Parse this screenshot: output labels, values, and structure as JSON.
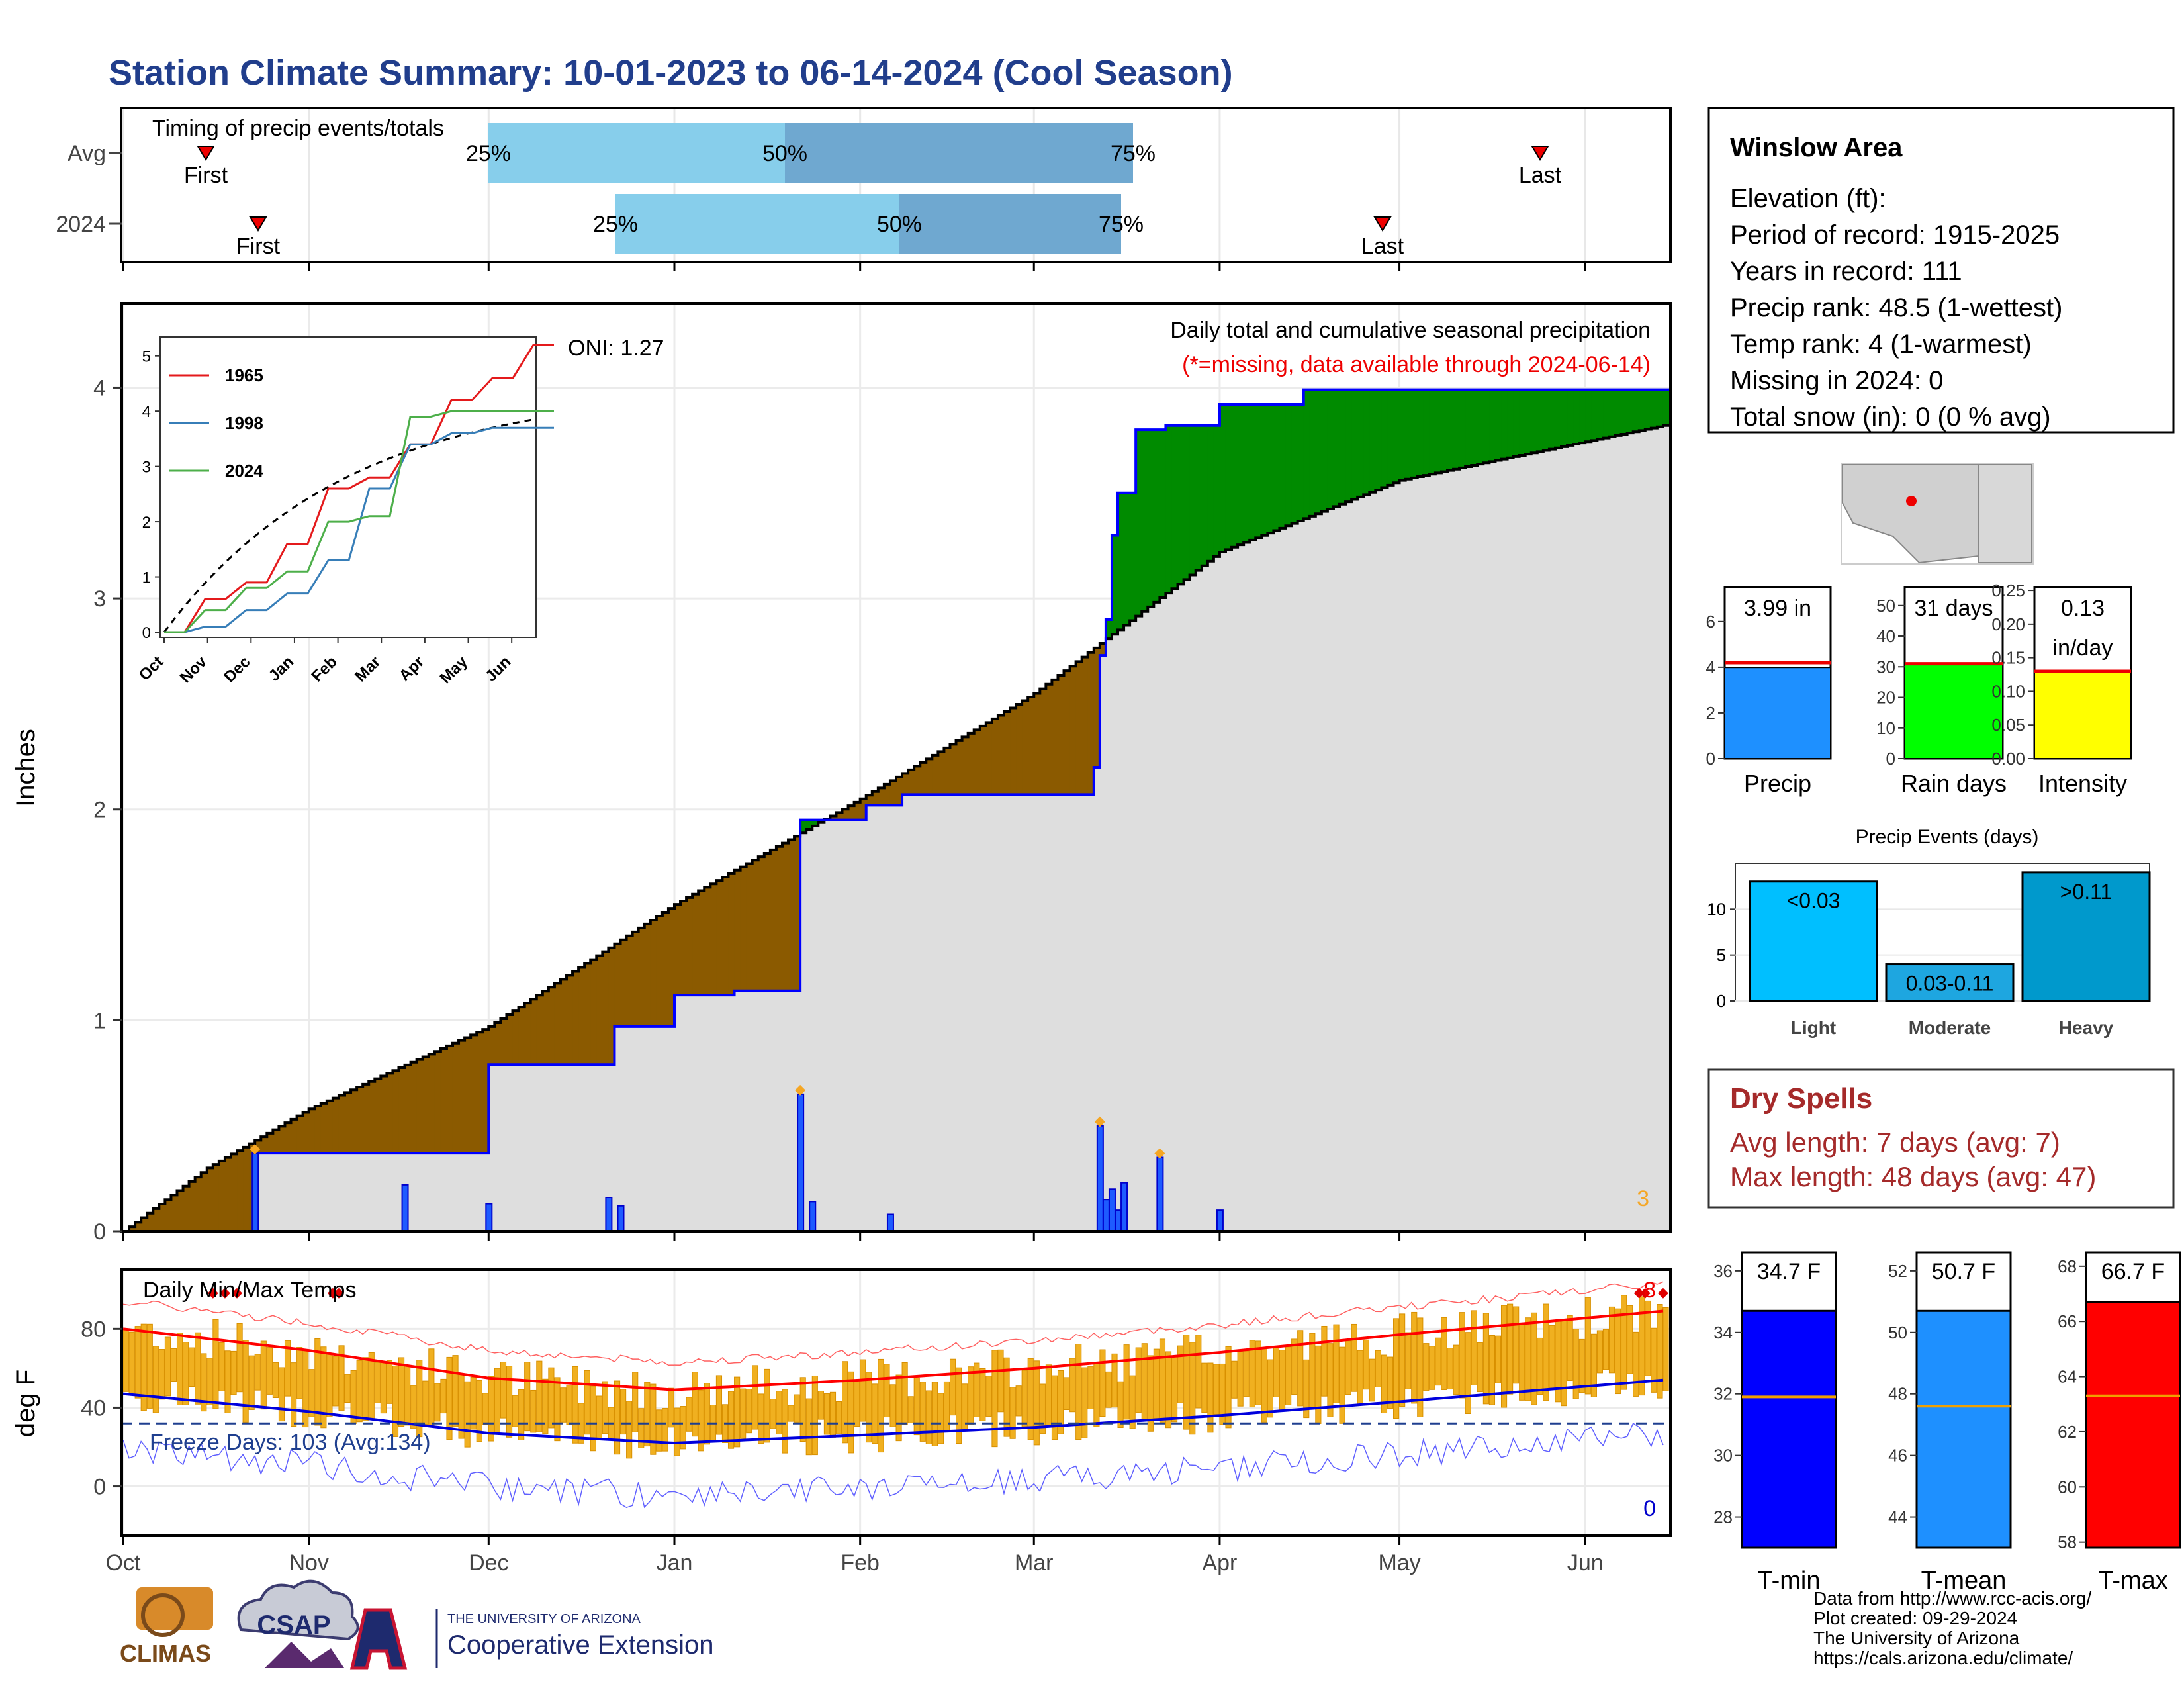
{
  "title": "Station Climate Summary: 10-01-2023 to 06-14-2024 (Cool Season)",
  "timing": {
    "label": "Timing of precip events/totals",
    "rows": [
      "Avg",
      "2024"
    ],
    "first_label": "First",
    "last_label": "Last",
    "pct_labels": [
      "25%",
      "50%",
      "75%"
    ]
  },
  "station": {
    "name": "Winslow Area",
    "lines": [
      "Elevation (ft):",
      "Period of record: 1915-2025",
      "Years in record: 111",
      "Precip rank: 48.5 (1-wettest)",
      "Temp rank: 4 (1-warmest)",
      "Missing in 2024: 0",
      "Total snow (in): 0 (0 % avg)"
    ]
  },
  "precip_panel": {
    "ylabel": "Inches",
    "oni": "ONI: 1.27",
    "note1": "Daily total and cumulative seasonal precipitation",
    "note2": "(*=missing, data available through 2024-06-14)",
    "corner_count": "3"
  },
  "inset": {
    "legend": [
      "1965",
      "1998",
      "2024"
    ],
    "colors": {
      "1965": "#e41a1c",
      "1998": "#377eb8",
      "2024": "#4daf4a"
    },
    "months": [
      "Oct",
      "Nov",
      "Dec",
      "Jan",
      "Feb",
      "Mar",
      "Apr",
      "May",
      "Jun"
    ],
    "yticks": [
      "0",
      "1",
      "2",
      "3",
      "4",
      "5"
    ]
  },
  "temp_panel": {
    "ylabel": "deg F",
    "label": "Daily Min/Max Temps",
    "freeze": "Freeze Days: 103 (Avg:134)",
    "hot_count": "8",
    "cold_count": "0",
    "yticks": [
      "0",
      "40",
      "80"
    ]
  },
  "months": [
    "Oct",
    "Nov",
    "Dec",
    "Jan",
    "Feb",
    "Mar",
    "Apr",
    "May",
    "Jun"
  ],
  "summary_bars": [
    {
      "label": "Precip",
      "value_text": "3.99 in",
      "color": "#1e90ff",
      "ticks": [
        "0",
        "2",
        "4",
        "6"
      ]
    },
    {
      "label": "Rain days",
      "value_text": "31 days",
      "color": "#00ff00",
      "ticks": [
        "0",
        "10",
        "20",
        "30",
        "40",
        "50"
      ]
    },
    {
      "label": "Intensity",
      "value_text": "0.13",
      "value_text2": "in/day",
      "color": "#ffff00",
      "ticks": [
        "0.00",
        "0.05",
        "0.10",
        "0.15",
        "0.20",
        "0.25"
      ]
    }
  ],
  "events": {
    "title": "Precip Events (days)",
    "categories": [
      "Light",
      "Moderate",
      "Heavy"
    ],
    "bar_labels": [
      "<0.03",
      "0.03-0.11",
      ">0.11"
    ],
    "ticks": [
      "0",
      "5",
      "10"
    ]
  },
  "dry_spells": {
    "title": "Dry Spells",
    "line1": "Avg length: 7 days (avg: 7)",
    "line2": "Max length: 48 days (avg: 47)"
  },
  "temp_bars": [
    {
      "label": "T-min",
      "value_text": "34.7 F",
      "color": "#0000ff",
      "ticks": [
        "28",
        "30",
        "32",
        "34",
        "36"
      ]
    },
    {
      "label": "T-mean",
      "value_text": "50.7 F",
      "color": "#1e90ff",
      "ticks": [
        "44",
        "46",
        "48",
        "50",
        "52"
      ]
    },
    {
      "label": "T-max",
      "value_text": "66.7 F",
      "color": "#ff0000",
      "ticks": [
        "58",
        "60",
        "62",
        "64",
        "66",
        "68"
      ]
    }
  ],
  "logos": {
    "climas": "CLIMAS",
    "csap": "CSAP",
    "ua_small": "THE UNIVERSITY OF ARIZONA",
    "ua_big": "Cooperative Extension"
  },
  "footer": [
    "Data from http://www.rcc-acis.org/",
    "Plot created: 09-29-2024",
    "The University of Arizona",
    "https://cals.arizona.edu/climate/"
  ],
  "chart_data": [
    {
      "type": "area",
      "title": "Daily total and cumulative seasonal precipitation",
      "ylabel": "Inches",
      "ylim": [
        0,
        4.4
      ],
      "x_range": [
        "2023-10-01",
        "2024-06-14"
      ],
      "series": [
        {
          "name": "cumulative 2024",
          "dates": [
            "2023-10-01",
            "2023-10-23",
            "2023-11-17",
            "2023-12-01",
            "2023-12-22",
            "2024-01-01",
            "2024-01-11",
            "2024-01-22",
            "2024-01-26",
            "2024-02-02",
            "2024-02-08",
            "2024-02-26",
            "2024-03-11",
            "2024-03-12",
            "2024-03-13",
            "2024-03-14",
            "2024-03-15",
            "2024-03-18",
            "2024-03-23",
            "2024-04-01",
            "2024-04-15",
            "2024-06-14"
          ],
          "values": [
            0,
            0.37,
            0.37,
            0.79,
            0.97,
            1.12,
            1.14,
            1.95,
            1.95,
            2.02,
            2.07,
            2.07,
            2.2,
            2.73,
            2.9,
            3.3,
            3.5,
            3.8,
            3.82,
            3.92,
            3.99,
            3.99
          ]
        },
        {
          "name": "cumulative average",
          "dates": [
            "2023-10-01",
            "2023-10-15",
            "2023-11-01",
            "2023-12-01",
            "2024-01-01",
            "2024-02-01",
            "2024-03-01",
            "2024-03-14",
            "2024-04-01",
            "2024-05-01",
            "2024-06-14"
          ],
          "values": [
            0,
            0.3,
            0.58,
            0.97,
            1.55,
            2.05,
            2.55,
            2.83,
            3.22,
            3.56,
            3.82
          ]
        }
      ],
      "daily_events": {
        "dates": [
          "2023-10-23",
          "2023-11-17",
          "2023-12-01",
          "2023-12-21",
          "2023-12-23",
          "2024-01-22",
          "2024-01-24",
          "2024-02-06",
          "2024-03-12",
          "2024-03-13",
          "2024-03-14",
          "2024-03-15",
          "2024-03-16",
          "2024-03-22",
          "2024-04-01"
        ],
        "values": [
          0.37,
          0.22,
          0.13,
          0.16,
          0.12,
          0.65,
          0.14,
          0.08,
          0.5,
          0.15,
          0.2,
          0.1,
          0.23,
          0.35,
          0.1
        ]
      }
    },
    {
      "type": "line",
      "title": "inset: cumulative precipitation by year",
      "ylim": [
        0,
        5.2
      ],
      "series": [
        {
          "name": "1965",
          "values_by_month": [
            0,
            0.6,
            0.9,
            1.6,
            2.6,
            2.8,
            3.4,
            4.2,
            4.6,
            5.2
          ]
        },
        {
          "name": "1998",
          "values_by_month": [
            0,
            0.1,
            0.4,
            0.7,
            1.3,
            2.6,
            3.4,
            3.6,
            3.7,
            3.7
          ]
        },
        {
          "name": "2024",
          "values_by_month": [
            0,
            0.4,
            0.8,
            1.1,
            2.0,
            2.1,
            3.9,
            4.0,
            4.0,
            4.0
          ]
        }
      ]
    },
    {
      "type": "bar",
      "title": "Daily Min/Max Temps",
      "ylabel": "deg F",
      "ylim": [
        -25,
        110
      ],
      "x_range": [
        "2023-10-01",
        "2024-06-14"
      ],
      "series": [
        {
          "name": "avg max",
          "dates": [
            "2023-10-01",
            "2023-11-01",
            "2023-12-01",
            "2024-01-01",
            "2024-02-01",
            "2024-03-01",
            "2024-04-01",
            "2024-05-01",
            "2024-06-14"
          ],
          "values": [
            80,
            69,
            55,
            49,
            54,
            60,
            68,
            77,
            89
          ]
        },
        {
          "name": "avg min",
          "dates": [
            "2023-10-01",
            "2023-11-01",
            "2023-12-01",
            "2024-01-01",
            "2024-02-01",
            "2024-03-01",
            "2024-04-01",
            "2024-05-01",
            "2024-06-14"
          ],
          "values": [
            47,
            38,
            27,
            22,
            26,
            30,
            36,
            43,
            54
          ]
        },
        {
          "name": "freeze line",
          "values": [
            32
          ]
        }
      ]
    },
    {
      "type": "bar",
      "categories": [
        "Precip",
        "Rain days",
        "Intensity"
      ],
      "series": [
        {
          "name": "2024",
          "values": [
            3.99,
            31,
            0.13
          ]
        },
        {
          "name": "average",
          "values": [
            4.2,
            31,
            0.13
          ]
        }
      ]
    },
    {
      "type": "bar",
      "title": "Precip Events (days)",
      "categories": [
        "Light",
        "Moderate",
        "Heavy"
      ],
      "values": [
        13,
        4,
        14
      ]
    },
    {
      "type": "bar",
      "categories": [
        "T-min",
        "T-mean",
        "T-max"
      ],
      "series": [
        {
          "name": "2024",
          "values": [
            34.7,
            50.7,
            66.7
          ]
        },
        {
          "name": "average",
          "values": [
            31.9,
            47.6,
            63.3
          ]
        }
      ]
    }
  ]
}
